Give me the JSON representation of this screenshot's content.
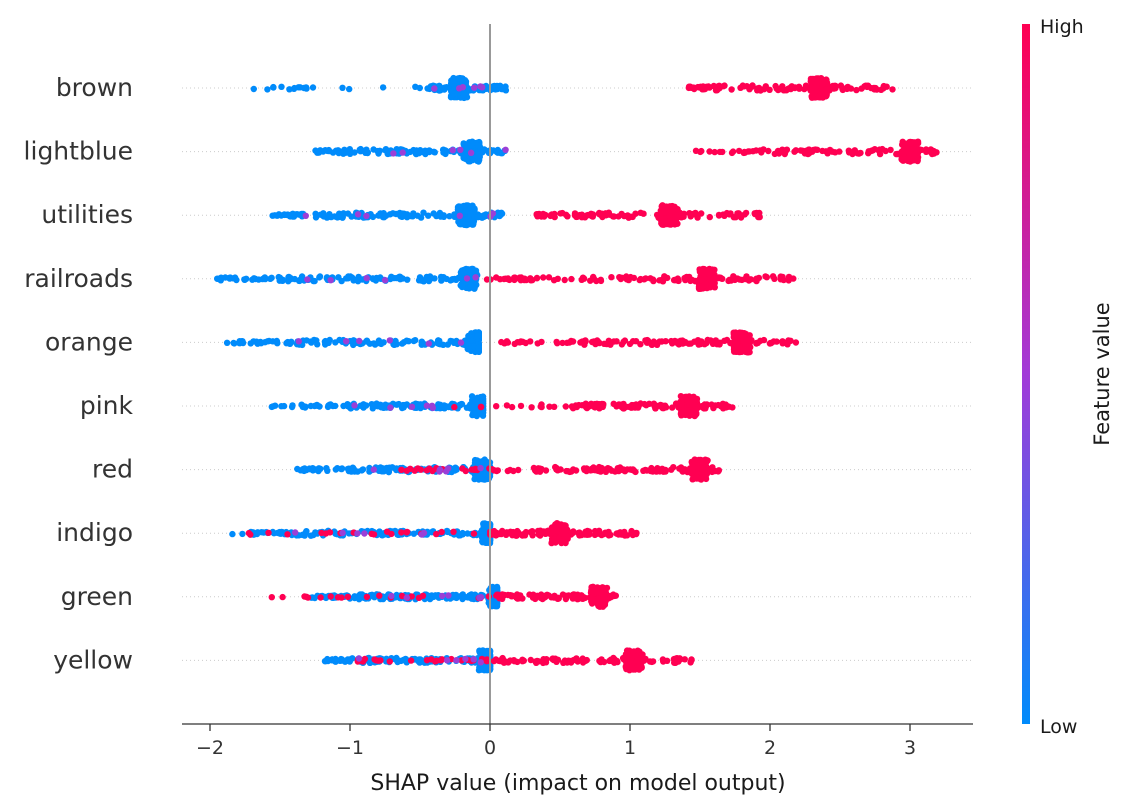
{
  "chart_data": {
    "type": "scatter",
    "subtype": "shap-beeswarm",
    "title": "",
    "xlabel": "SHAP value (impact on model output)",
    "xlim": [
      -2.2,
      3.45
    ],
    "xticks": [
      -2,
      -1,
      0,
      1,
      2,
      3
    ],
    "xtick_labels": [
      "−2",
      "−1",
      "0",
      "1",
      "2",
      "3"
    ],
    "zero_line": true,
    "grid": "horizontal dotted per feature",
    "colorbar": {
      "label": "Feature value",
      "high_label": "High",
      "low_label": "Low",
      "high_color": "#ff0052",
      "low_color": "#008bfb"
    },
    "features": [
      {
        "name": "brown",
        "low": {
          "min": -1.72,
          "max": 0.12,
          "dense_from": -0.45,
          "mode": -0.22
        },
        "high": {
          "min": 1.42,
          "max": 2.88,
          "dense_from": 1.58,
          "mode": 2.35
        }
      },
      {
        "name": "lightblue",
        "low": {
          "min": -1.25,
          "max": 0.12,
          "dense_from": -1.05,
          "mode": -0.13
        },
        "high": {
          "min": 1.47,
          "max": 3.2,
          "dense_from": 1.95,
          "mode": 3.0
        }
      },
      {
        "name": "utilities",
        "low": {
          "min": -1.58,
          "max": 0.12,
          "dense_from": -1.32,
          "mode": -0.17
        },
        "high": {
          "min": 0.33,
          "max": 1.93,
          "dense_from": 0.45,
          "mode": 1.28
        }
      },
      {
        "name": "railroads",
        "low": {
          "min": -1.95,
          "max": -0.08,
          "dense_from": -1.55,
          "mode": -0.15
        },
        "high": {
          "min": -0.05,
          "max": 2.2,
          "dense_from": 0.6,
          "mode": 1.55
        }
      },
      {
        "name": "orange",
        "low": {
          "min": -1.88,
          "max": -0.08,
          "dense_from": -1.4,
          "mode": -0.1
        },
        "high": {
          "min": 0.05,
          "max": 2.2,
          "dense_from": 0.63,
          "mode": 1.8
        }
      },
      {
        "name": "pink",
        "low": {
          "min": -1.57,
          "max": -0.05,
          "dense_from": -1.05,
          "mode": -0.07
        },
        "high": {
          "min": -0.3,
          "max": 1.75,
          "dense_from": 0.58,
          "mode": 1.42
        }
      },
      {
        "name": "red",
        "low": {
          "min": -1.38,
          "max": 0.0,
          "dense_from": -1.0,
          "mode": -0.05
        },
        "high": {
          "min": -0.7,
          "max": 1.65,
          "dense_from": 0.3,
          "mode": 1.5
        }
      },
      {
        "name": "indigo",
        "low": {
          "min": -1.85,
          "max": 0.0,
          "dense_from": -1.45,
          "mode": 0.0
        },
        "high": {
          "min": -1.85,
          "max": 1.05,
          "dense_from": 0.0,
          "mode": 0.5
        }
      },
      {
        "name": "green",
        "low": {
          "min": -1.28,
          "max": 0.05,
          "dense_from": -1.05,
          "mode": 0.05
        },
        "high": {
          "min": -1.78,
          "max": 0.9,
          "dense_from": 0.05,
          "mode": 0.78
        }
      },
      {
        "name": "yellow",
        "low": {
          "min": -1.18,
          "max": 0.0,
          "dense_from": -1.0,
          "mode": -0.02
        },
        "high": {
          "min": -0.95,
          "max": 1.45,
          "dense_from": 0.05,
          "mode": 1.03
        }
      }
    ]
  }
}
